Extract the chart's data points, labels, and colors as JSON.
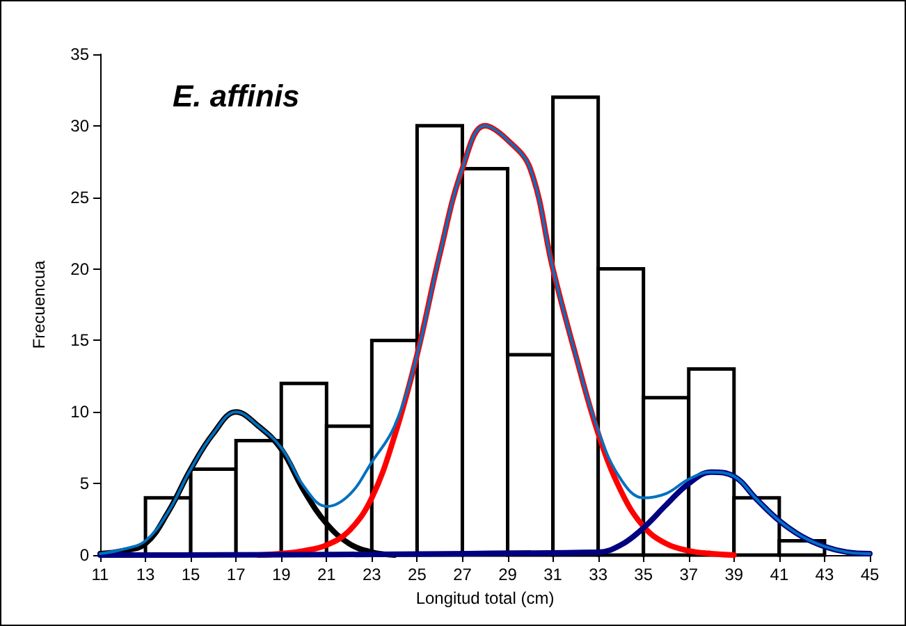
{
  "chart_data": {
    "type": "histogram",
    "title": "E. affinis",
    "xlabel": "Longitud total (cm)",
    "ylabel": "Frecuencua",
    "bins": [
      13,
      15,
      17,
      19,
      21,
      23,
      25,
      27,
      29,
      31,
      33,
      35,
      37,
      39,
      41,
      43
    ],
    "values": [
      4,
      6,
      8,
      12,
      9,
      15,
      30,
      27,
      14,
      32,
      20,
      11,
      13,
      4,
      1
    ],
    "color": "#ffffff",
    "series": [
      {
        "type": "line",
        "color": "#000000",
        "x": [
          11,
          12,
          13,
          14,
          15,
          16,
          17,
          18,
          19,
          20,
          21,
          22,
          23,
          24
        ],
        "values": [
          0.1,
          0.3,
          0.8,
          3,
          6,
          8.5,
          10,
          9,
          7.4,
          4.5,
          2.2,
          0.8,
          0.2,
          0
        ]
      },
      {
        "type": "line",
        "color": "#ff0000",
        "x": [
          18,
          19,
          20,
          21,
          22,
          23,
          24,
          25,
          26,
          27,
          28,
          29,
          30,
          31,
          32,
          33,
          34,
          35,
          36,
          37,
          38,
          39
        ],
        "values": [
          0,
          0.1,
          0.3,
          0.7,
          1.7,
          4,
          8.3,
          14,
          21,
          27,
          30,
          29,
          27,
          20,
          14,
          8.5,
          4.5,
          2,
          0.8,
          0.3,
          0.1,
          0
        ]
      },
      {
        "type": "line",
        "color": "#000080",
        "x": [
          11,
          33,
          34,
          35,
          36,
          37,
          38,
          39,
          40,
          41,
          42,
          43,
          44,
          45
        ],
        "values": [
          0,
          0.2,
          0.7,
          1.9,
          3.5,
          5,
          5.8,
          5.5,
          3.9,
          2.4,
          1.3,
          0.6,
          0.2,
          0.1
        ]
      },
      {
        "type": "line",
        "color": "#0070c0",
        "x": [
          11,
          12,
          13,
          14,
          15,
          16,
          17,
          18,
          19,
          20,
          21,
          22,
          23,
          24,
          25,
          26,
          27,
          28,
          29,
          30,
          31,
          32,
          33,
          34,
          35,
          36,
          37,
          38,
          39,
          40,
          41,
          42,
          43,
          44,
          45
        ],
        "values": [
          0.1,
          0.4,
          1,
          3,
          6,
          8.5,
          10,
          9,
          7.5,
          4.8,
          3.4,
          4.2,
          6.5,
          9,
          14,
          21,
          27,
          30,
          29,
          27,
          20,
          14,
          8.7,
          5.3,
          4,
          4.3,
          5.3,
          5.8,
          5.5,
          3.9,
          2.4,
          1.3,
          0.6,
          0.2,
          0.1
        ]
      }
    ],
    "xlim": [
      11,
      45
    ],
    "xticks": [
      11,
      13,
      15,
      17,
      19,
      21,
      23,
      25,
      27,
      29,
      31,
      33,
      35,
      37,
      39,
      41,
      43,
      45
    ],
    "ylim": [
      0,
      35
    ],
    "yticks": [
      0,
      5,
      10,
      15,
      20,
      25,
      30,
      35
    ],
    "grid": false,
    "marker": "none"
  }
}
